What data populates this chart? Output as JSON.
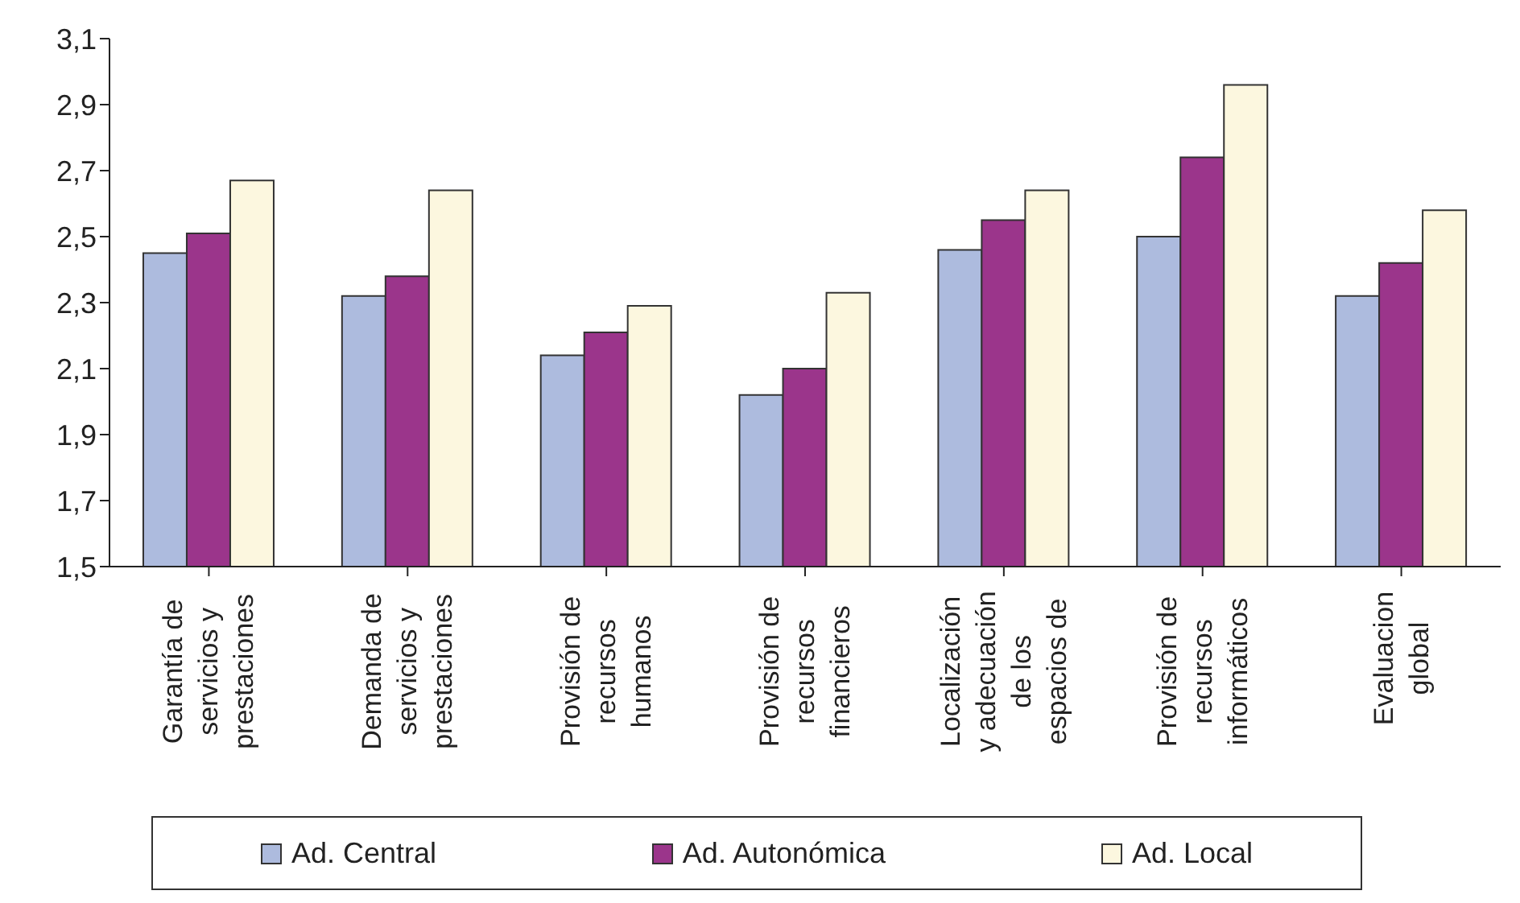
{
  "chart_data": {
    "type": "bar",
    "categories": [
      "Garantía de servicios y prestaciones",
      "Demanda de servicios y prestaciones",
      "Provisión de recursos humanos",
      "Provisión de recursos financieros",
      "Localización y adecuación de los espacios de",
      "Provisión de recursos informáticos",
      "Evaluacion global"
    ],
    "series": [
      {
        "name": "Ad. Central",
        "color": "#adbbde",
        "values": [
          2.45,
          2.32,
          2.14,
          2.02,
          2.46,
          2.5,
          2.32
        ]
      },
      {
        "name": "Ad. Autonómica",
        "color": "#9b358b",
        "values": [
          2.51,
          2.38,
          2.21,
          2.1,
          2.55,
          2.74,
          2.42
        ]
      },
      {
        "name": "Ad. Local",
        "color": "#fcf7df",
        "values": [
          2.67,
          2.64,
          2.29,
          2.33,
          2.64,
          2.96,
          2.58
        ]
      }
    ],
    "ylim": [
      1.5,
      3.1
    ],
    "yticks": [
      {
        "value": 1.5,
        "label": "1,5"
      },
      {
        "value": 1.7,
        "label": "1,7"
      },
      {
        "value": 1.9,
        "label": "1,9"
      },
      {
        "value": 2.1,
        "label": "2,1"
      },
      {
        "value": 2.3,
        "label": "2,3"
      },
      {
        "value": 2.5,
        "label": "2,5"
      },
      {
        "value": 2.7,
        "label": "2,7"
      },
      {
        "value": 2.9,
        "label": "2,9"
      },
      {
        "value": 3.1,
        "label": "3,1"
      }
    ],
    "grid": false,
    "legend": "bottom"
  }
}
